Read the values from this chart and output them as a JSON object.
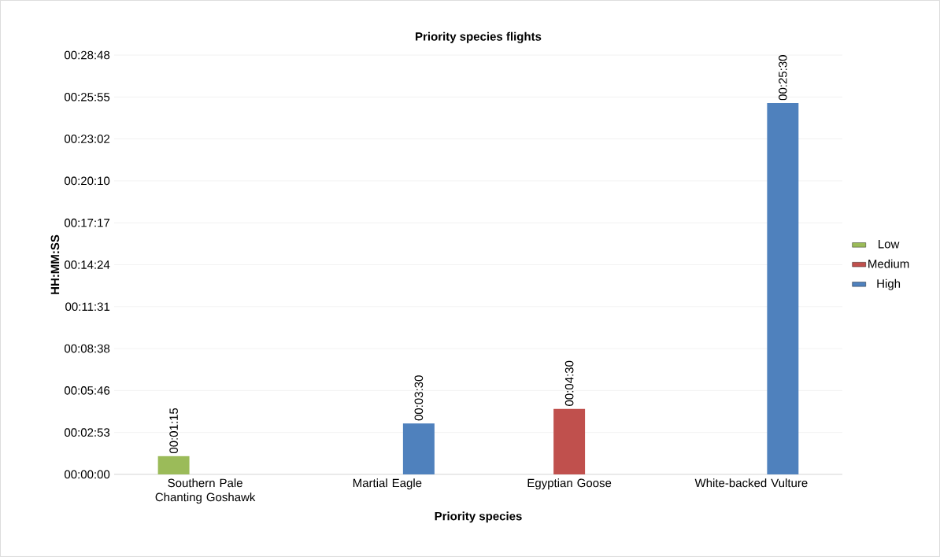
{
  "chart_data": {
    "type": "bar",
    "title": "Priority species flights",
    "xlabel": "Priority species",
    "ylabel": "HH:MM:SS",
    "categories": [
      "Southern Pale Chanting Goshawk",
      "Martial Eagle",
      "Egyptian Goose",
      "White-backed Vulture"
    ],
    "series": [
      {
        "name": "Low",
        "color": "#9bbb59",
        "values": [
          75,
          null,
          null,
          null
        ],
        "value_labels": [
          "00:01:15",
          null,
          null,
          null
        ]
      },
      {
        "name": "Medium",
        "color": "#c0504d",
        "values": [
          null,
          null,
          270,
          null
        ],
        "value_labels": [
          null,
          null,
          "00:04:30",
          null
        ]
      },
      {
        "name": "High",
        "color": "#4f81bd",
        "values": [
          null,
          210,
          null,
          1530
        ],
        "value_labels": [
          null,
          "00:03:30",
          null,
          "00:25:30"
        ]
      }
    ],
    "ylim": [
      0,
      1728
    ],
    "yticks": [
      {
        "value": 0,
        "label": "00:00:00"
      },
      {
        "value": 172.8,
        "label": "00:02:53"
      },
      {
        "value": 345.6,
        "label": "00:05:46"
      },
      {
        "value": 518.4,
        "label": "00:08:38"
      },
      {
        "value": 691.2,
        "label": "00:11:31"
      },
      {
        "value": 864,
        "label": "00:14:24"
      },
      {
        "value": 1036.8,
        "label": "00:17:17"
      },
      {
        "value": 1209.6,
        "label": "00:20:10"
      },
      {
        "value": 1382.4,
        "label": "00:23:02"
      },
      {
        "value": 1555.2,
        "label": "00:25:55"
      },
      {
        "value": 1728,
        "label": "00:28:48"
      }
    ],
    "grid": "y",
    "legend": "right"
  }
}
